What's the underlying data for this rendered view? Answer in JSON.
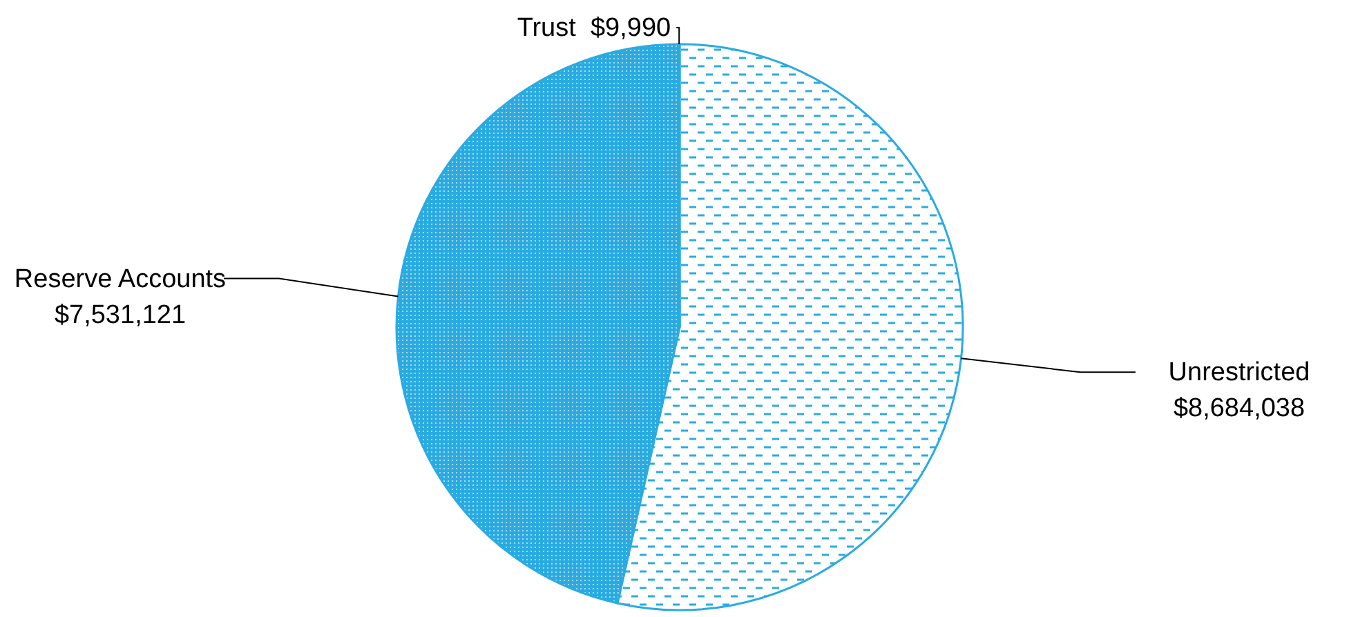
{
  "chart_data": {
    "type": "pie",
    "categories": [
      "Unrestricted",
      "Reserve Accounts",
      "Trust"
    ],
    "values": [
      8684038,
      7531121,
      9990
    ],
    "value_labels": [
      "$8,684,038",
      "$7,531,121",
      "$9,990"
    ],
    "colors": [
      "#29abe2",
      "#29abe2",
      "#29abe2"
    ]
  }
}
